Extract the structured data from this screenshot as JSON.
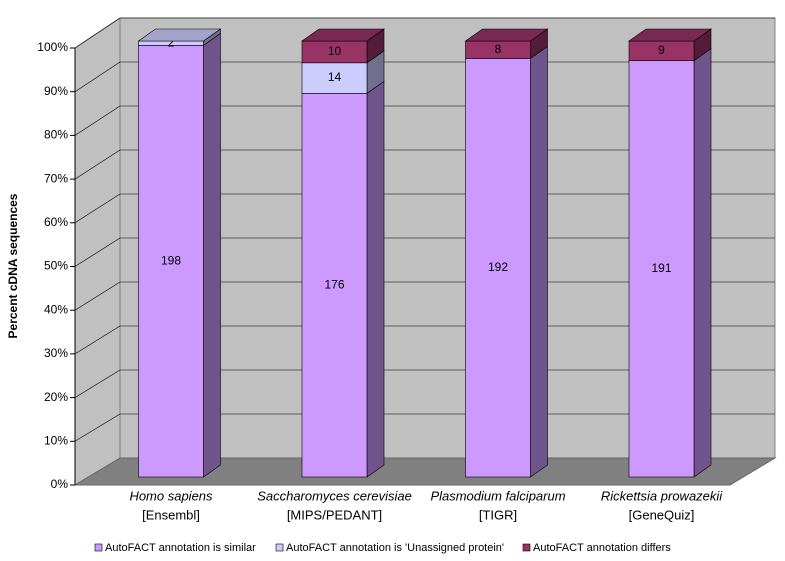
{
  "chart_data": {
    "type": "stacked_percent_bar_3d",
    "y_axis_label": "Percent cDNA sequences",
    "categories": [
      "Homo sapiens",
      "Saccharomyces cerevisiae",
      "Plasmodium falciparum",
      "Rickettsia prowazekii"
    ],
    "category_sources": [
      "[Ensembl]",
      "[MIPS/PEDANT]",
      "[TIGR]",
      "[GeneQuiz]"
    ],
    "series": [
      {
        "name": "AutoFACT annotation is similar",
        "color": "#cc99ff",
        "values": [
          198,
          176,
          192,
          191
        ]
      },
      {
        "name": "AutoFACT annotation is 'Unassigned protein'",
        "color": "#ccccff",
        "values": [
          2,
          14,
          null,
          null
        ]
      },
      {
        "name": "AutoFACT annotation differs",
        "color": "#993366",
        "values": [
          null,
          10,
          8,
          9
        ]
      }
    ],
    "ylim": [
      0,
      100
    ],
    "yticks": [
      {
        "value": 0,
        "label": "0%"
      },
      {
        "value": 10,
        "label": "10%"
      },
      {
        "value": 20,
        "label": "20%"
      },
      {
        "value": 30,
        "label": "30%"
      },
      {
        "value": 40,
        "label": "40%"
      },
      {
        "value": 50,
        "label": "50%"
      },
      {
        "value": 60,
        "label": "60%"
      },
      {
        "value": 70,
        "label": "70%"
      },
      {
        "value": 80,
        "label": "80%"
      },
      {
        "value": 90,
        "label": "90%"
      },
      {
        "value": 100,
        "label": "100%"
      }
    ],
    "grid": true,
    "legend": "bottom"
  }
}
